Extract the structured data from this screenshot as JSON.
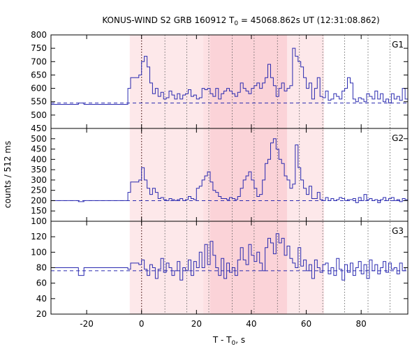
{
  "chart_data": {
    "type": "line",
    "title": {
      "prefix": "KONUS-WIND S2 GRB 160912 T",
      "subscript": "0",
      "suffix": " = 45068.862s UT (12:31:08.862)"
    },
    "xlabel": {
      "prefix": "T - T",
      "subscript": "0",
      "suffix": ", s"
    },
    "ylabel": "counts / 512 ms",
    "xlim": [
      -33,
      97
    ],
    "x_ticks": [
      -20,
      0,
      20,
      40,
      60,
      80
    ],
    "grid": false,
    "shaded_intervals": [
      {
        "x0": -4.3,
        "x1": 66.5,
        "shade": "light",
        "color": "#fde8ea"
      },
      {
        "x0": 25,
        "x1": 53,
        "shade": "dark",
        "color": "#fbd3d8"
      }
    ],
    "shaded_inner_band": {
      "x0": 22.5,
      "x1": 25,
      "color": "#fde0e3"
    },
    "dotted_lines": [
      0,
      8.5,
      16.5,
      24.5,
      33,
      41,
      49.5,
      57.5,
      66,
      74,
      82.5,
      90.5
    ],
    "dotted_line_trigger": 0,
    "panels": [
      {
        "label": "G1",
        "ylim": [
          450,
          800
        ],
        "y_ticks": [
          450,
          500,
          550,
          600,
          650,
          700,
          750,
          800
        ],
        "background": 545,
        "series_color": "#2a2ab0",
        "x": [
          -33,
          -23,
          -21,
          -5,
          -4,
          -1,
          0,
          1,
          2,
          3,
          4,
          5,
          6,
          7,
          8,
          9,
          10,
          11,
          12,
          13,
          14,
          15,
          16,
          17,
          18,
          19,
          20,
          21,
          22,
          23,
          24,
          25,
          26,
          27,
          28,
          29,
          30,
          31,
          32,
          33,
          34,
          35,
          36,
          37,
          38,
          39,
          40,
          41,
          42,
          43,
          44,
          45,
          46,
          47,
          48,
          49,
          50,
          51,
          52,
          53,
          54,
          55,
          56,
          57,
          58,
          59,
          60,
          61,
          62,
          63,
          64,
          65,
          66,
          67,
          68,
          69,
          70,
          71,
          72,
          73,
          74,
          75,
          76,
          77,
          78,
          79,
          80,
          81,
          82,
          83,
          84,
          85,
          86,
          87,
          88,
          89,
          90,
          91,
          92,
          93,
          94,
          95,
          96
        ],
        "y": [
          540,
          545,
          540,
          600,
          640,
          650,
          700,
          720,
          680,
          620,
          580,
          600,
          570,
          585,
          560,
          565,
          590,
          575,
          560,
          580,
          560,
          575,
          580,
          595,
          570,
          575,
          560,
          565,
          600,
          595,
          600,
          580,
          570,
          600,
          560,
          580,
          590,
          600,
          590,
          580,
          570,
          585,
          620,
          600,
          590,
          580,
          600,
          610,
          620,
          600,
          620,
          640,
          690,
          640,
          610,
          570,
          600,
          620,
          590,
          600,
          610,
          750,
          720,
          700,
          680,
          640,
          600,
          620,
          560,
          600,
          640,
          570,
          565,
          590,
          555,
          560,
          580,
          570,
          560,
          590,
          600,
          640,
          620,
          560,
          550,
          565,
          560,
          550,
          580,
          570,
          560,
          590,
          560,
          580,
          550,
          560,
          545,
          580,
          560,
          570,
          555,
          600,
          560
        ]
      },
      {
        "label": "G2",
        "ylim": [
          100,
          550
        ],
        "y_ticks": [
          100,
          150,
          200,
          250,
          300,
          350,
          400,
          450,
          500
        ],
        "background": 200,
        "series_color": "#2a2ab0",
        "x": [
          -33,
          -23,
          -21,
          -5,
          -4,
          -1,
          0,
          1,
          2,
          3,
          4,
          5,
          6,
          7,
          8,
          9,
          10,
          11,
          12,
          13,
          14,
          15,
          16,
          17,
          18,
          19,
          20,
          21,
          22,
          23,
          24,
          25,
          26,
          27,
          28,
          29,
          30,
          31,
          32,
          33,
          34,
          35,
          36,
          37,
          38,
          39,
          40,
          41,
          42,
          43,
          44,
          45,
          46,
          47,
          48,
          49,
          50,
          51,
          52,
          53,
          54,
          55,
          56,
          57,
          58,
          59,
          60,
          61,
          62,
          63,
          64,
          65,
          66,
          67,
          68,
          69,
          70,
          71,
          72,
          73,
          74,
          75,
          76,
          77,
          78,
          79,
          80,
          81,
          82,
          83,
          84,
          85,
          86,
          87,
          88,
          89,
          90,
          91,
          92,
          93,
          94,
          95,
          96
        ],
        "y": [
          200,
          195,
          200,
          240,
          290,
          300,
          360,
          300,
          260,
          230,
          260,
          240,
          210,
          215,
          205,
          200,
          210,
          205,
          200,
          205,
          210,
          200,
          205,
          220,
          210,
          205,
          260,
          270,
          300,
          320,
          340,
          290,
          250,
          240,
          220,
          210,
          210,
          205,
          215,
          210,
          205,
          220,
          260,
          300,
          320,
          340,
          300,
          260,
          220,
          230,
          300,
          380,
          400,
          480,
          500,
          450,
          400,
          380,
          320,
          300,
          260,
          280,
          470,
          360,
          300,
          260,
          230,
          270,
          210,
          210,
          240,
          205,
          200,
          215,
          200,
          210,
          200,
          205,
          215,
          210,
          200,
          205,
          205,
          210,
          190,
          215,
          200,
          230,
          205,
          210,
          200,
          205,
          190,
          205,
          215,
          200,
          210,
          215,
          200,
          205,
          195,
          210,
          205
        ]
      },
      {
        "label": "G3",
        "ylim": [
          20,
          140
        ],
        "y_ticks": [
          20,
          40,
          60,
          80,
          100,
          120
        ],
        "background": 76,
        "series_color": "#2a2ab0",
        "x": [
          -33,
          -23,
          -21,
          -5,
          -4,
          -1,
          0,
          1,
          2,
          3,
          4,
          5,
          6,
          7,
          8,
          9,
          10,
          11,
          12,
          13,
          14,
          15,
          16,
          17,
          18,
          19,
          20,
          21,
          22,
          23,
          24,
          25,
          26,
          27,
          28,
          29,
          30,
          31,
          32,
          33,
          34,
          35,
          36,
          37,
          38,
          39,
          40,
          41,
          42,
          43,
          44,
          45,
          46,
          47,
          48,
          49,
          50,
          51,
          52,
          53,
          54,
          55,
          56,
          57,
          58,
          59,
          60,
          61,
          62,
          63,
          64,
          65,
          66,
          67,
          68,
          69,
          70,
          71,
          72,
          73,
          74,
          75,
          76,
          77,
          78,
          79,
          80,
          81,
          82,
          83,
          84,
          85,
          86,
          87,
          88,
          89,
          90,
          91,
          92,
          93,
          94,
          95,
          96
        ],
        "y": [
          80,
          70,
          80,
          78,
          86,
          84,
          90,
          78,
          70,
          84,
          80,
          66,
          78,
          92,
          74,
          86,
          80,
          70,
          76,
          88,
          64,
          80,
          76,
          90,
          70,
          88,
          80,
          100,
          80,
          110,
          84,
          114,
          96,
          80,
          70,
          92,
          66,
          86,
          74,
          80,
          70,
          90,
          106,
          90,
          84,
          110,
          96,
          88,
          100,
          86,
          76,
          106,
          118,
          112,
          98,
          124,
          112,
          118,
          96,
          108,
          92,
          86,
          80,
          106,
          82,
          90,
          76,
          84,
          66,
          90,
          80,
          74,
          84,
          86,
          72,
          80,
          70,
          92,
          78,
          64,
          84,
          74,
          86,
          70,
          80,
          88,
          72,
          84,
          66,
          90,
          76,
          84,
          72,
          80,
          88,
          74,
          86,
          78,
          80,
          72,
          86,
          76,
          80
        ]
      }
    ]
  }
}
